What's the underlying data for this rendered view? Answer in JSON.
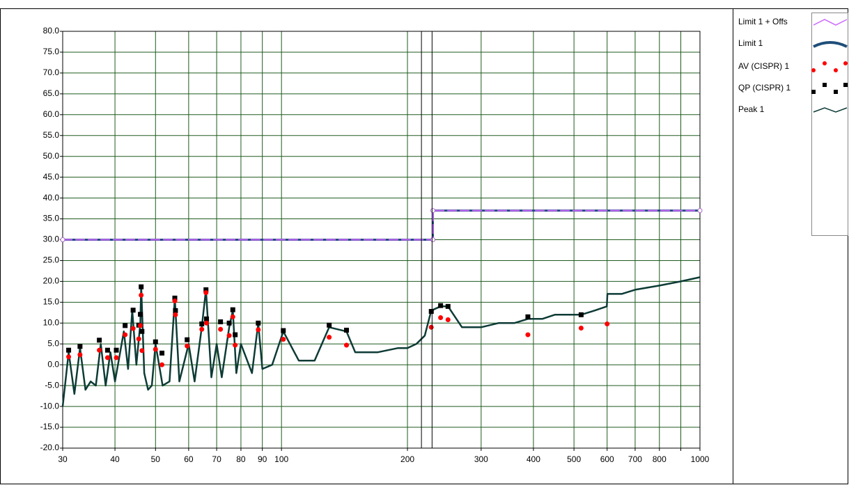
{
  "chart_data": {
    "type": "line",
    "xscale": "log",
    "grid": true,
    "grid_color": "#1e5a1e",
    "legend": "right",
    "xlim": [
      30,
      1000
    ],
    "ylim": [
      -20,
      80
    ],
    "xticks": [
      30,
      40,
      50,
      60,
      70,
      80,
      90,
      100,
      200,
      300,
      400,
      500,
      600,
      700,
      800,
      {
        "value": 900,
        "label": null
      },
      1000
    ],
    "yticks": [
      {
        "value": 80,
        "label": "80.0"
      },
      {
        "value": 75,
        "label": "75.0"
      },
      {
        "value": 70,
        "label": "70.0"
      },
      {
        "value": 65,
        "label": "65.0"
      },
      {
        "value": 60,
        "label": "60.0"
      },
      {
        "value": 55,
        "label": "55.0"
      },
      {
        "value": 50,
        "label": "50.0"
      },
      {
        "value": 45,
        "label": "45.0"
      },
      {
        "value": 40,
        "label": "40.0"
      },
      {
        "value": 35,
        "label": "35.0"
      },
      {
        "value": 30,
        "label": "30.0"
      },
      {
        "value": 25,
        "label": "25.0"
      },
      {
        "value": 20,
        "label": "20.0"
      },
      {
        "value": 15,
        "label": "15.0"
      },
      {
        "value": 10,
        "label": "10.0"
      },
      {
        "value": 5,
        "label": "5.0"
      },
      {
        "value": 0,
        "label": "0.0"
      },
      {
        "value": -5,
        "label": "-5.0"
      },
      {
        "value": -10,
        "label": "-10.0"
      },
      {
        "value": -15,
        "label": "-15.0"
      },
      {
        "value": -20,
        "label": "-20.0"
      }
    ],
    "cursors": [
      216,
      229
    ],
    "series": [
      {
        "name": "Limit 1 + Offs",
        "color": "#cc66ff",
        "style": "line",
        "x": [
          30,
          230,
          230,
          1000
        ],
        "values": [
          30,
          30,
          37,
          37
        ]
      },
      {
        "name": "Limit 1",
        "color": "#1f4e79",
        "style": "thick",
        "x": [
          30,
          230,
          230,
          1000
        ],
        "values": [
          30,
          30,
          37,
          37
        ]
      },
      {
        "name": "AV (CISPR) 1",
        "color": "#ff0000",
        "style": "dots",
        "x": [
          31,
          33,
          36.7,
          38.4,
          40.3,
          42.3,
          44.2,
          45.6,
          46,
          46.2,
          46.4,
          50,
          51.8,
          55.6,
          55.8,
          59.5,
          64.5,
          66,
          66.2,
          71.5,
          75,
          76.5,
          77.5,
          88,
          101,
          130,
          143,
          228,
          240,
          250,
          388,
          520,
          600
        ],
        "values": [
          1.9,
          2.4,
          3.5,
          1.7,
          1.7,
          7.2,
          8.7,
          6.2,
          9.4,
          16.7,
          3.4,
          3.7,
          0,
          15.3,
          12,
          4.5,
          8.5,
          17.3,
          10,
          8.5,
          7,
          11.5,
          4.7,
          8.4,
          6.1,
          6.6,
          4.7,
          9,
          11.3,
          10.8,
          7.2,
          8.8,
          9.8
        ]
      },
      {
        "name": "QP (CISPR) 1",
        "color": "#000000",
        "style": "squares",
        "x": [
          31,
          33,
          36.7,
          38.4,
          40.3,
          42.3,
          44.2,
          45.6,
          46,
          46.2,
          46.4,
          50,
          51.8,
          55.6,
          55.8,
          59.5,
          64.5,
          66,
          66.2,
          71.5,
          75,
          76.5,
          77.5,
          88,
          101,
          130,
          143,
          228,
          240,
          250,
          388,
          520
        ],
        "values": [
          3.5,
          4.4,
          5.9,
          3.5,
          3.5,
          9.4,
          13.1,
          9.5,
          12.1,
          18.7,
          8,
          5.5,
          2.8,
          16,
          13,
          6,
          9.8,
          18,
          11,
          10.3,
          10,
          13.2,
          7.2,
          10,
          8.2,
          9.5,
          8.3,
          12.8,
          14.2,
          14,
          11.5,
          12
        ]
      },
      {
        "name": "Peak 1",
        "color": "#0d3b36",
        "style": "trace",
        "x": [
          30,
          31,
          32,
          33,
          34,
          35,
          36,
          37,
          38,
          39,
          40,
          41,
          42,
          43,
          44,
          45,
          46,
          46.2,
          47,
          48,
          49,
          50,
          52,
          54,
          55.6,
          57,
          60,
          62,
          64.5,
          66,
          68,
          70,
          72,
          75,
          76.5,
          78,
          80,
          85,
          88,
          90,
          95,
          101,
          110,
          120,
          130,
          143,
          150,
          170,
          190,
          200,
          210,
          220,
          228,
          240,
          250,
          270,
          300,
          330,
          360,
          388,
          420,
          450,
          480,
          520,
          560,
          599,
          601,
          650,
          700,
          800,
          900,
          1000
        ],
        "values": [
          -10,
          3,
          -7,
          4,
          -6,
          -4,
          -5,
          5,
          -5,
          3,
          -4,
          2,
          8,
          -1,
          13,
          0,
          10,
          19,
          -2,
          -6,
          -5,
          5,
          -5,
          -4,
          16,
          -4,
          5,
          -4,
          9,
          18,
          -3,
          5,
          -3,
          9,
          13,
          -2,
          5,
          -2,
          10,
          -1,
          0,
          8,
          1,
          1,
          9,
          8,
          3,
          3,
          4,
          4,
          5,
          7,
          13,
          14,
          14,
          9,
          9,
          10,
          10,
          11,
          11,
          12,
          12,
          12,
          13,
          14,
          17,
          17,
          18,
          19,
          20,
          21
        ]
      }
    ]
  }
}
